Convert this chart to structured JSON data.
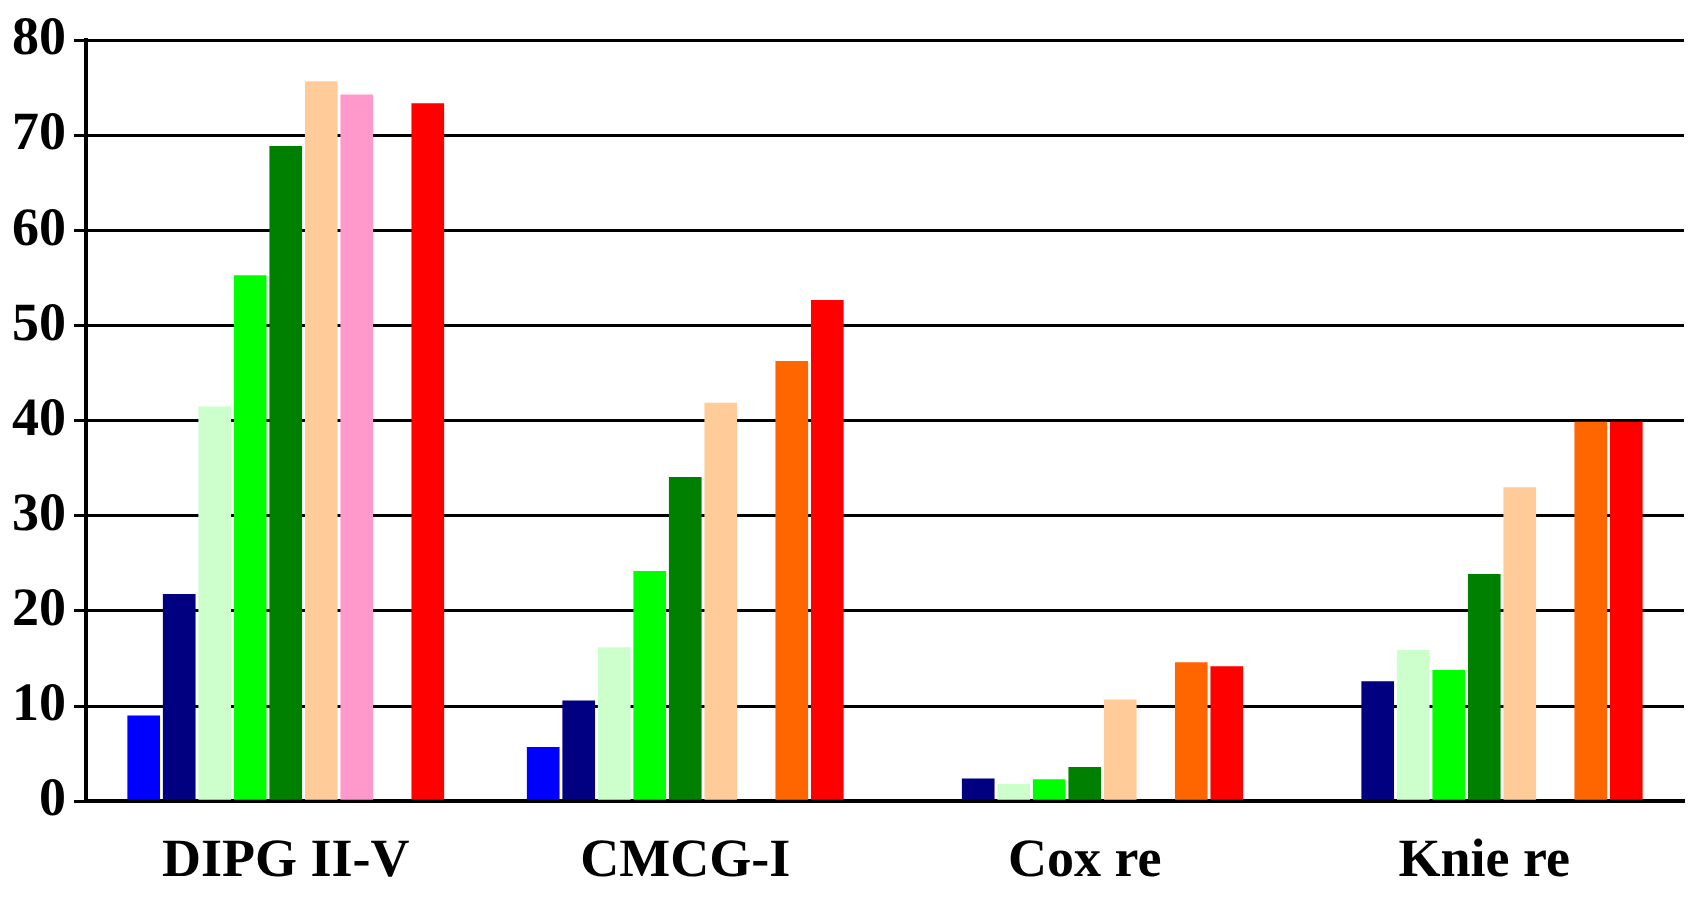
{
  "chart_data": {
    "type": "bar",
    "categories": [
      "DIPG II-V",
      "CMCG-I",
      "Cox re",
      "Knie re"
    ],
    "series": [
      {
        "color": "#0000ff",
        "values": [
          9.0,
          5.7,
          null,
          null
        ]
      },
      {
        "color": "#000080",
        "values": [
          21.8,
          10.6,
          2.4,
          12.6
        ]
      },
      {
        "color": "#ccffcc",
        "values": [
          41.5,
          16.2,
          1.8,
          15.9
        ]
      },
      {
        "color": "#00ff00",
        "values": [
          55.3,
          24.2,
          2.3,
          13.8
        ]
      },
      {
        "color": "#008000",
        "values": [
          68.9,
          34.1,
          3.6,
          23.9
        ]
      },
      {
        "color": "#ffcc99",
        "values": [
          75.7,
          41.9,
          10.7,
          33.0
        ]
      },
      {
        "color": "#ff99cc",
        "values": [
          74.3,
          null,
          null,
          null
        ]
      },
      {
        "color": "#ff6600",
        "values": [
          null,
          46.3,
          14.6,
          39.9
        ]
      },
      {
        "color": "#ff0000",
        "values": [
          73.4,
          52.7,
          14.2,
          39.9
        ]
      }
    ],
    "ylim": [
      0,
      80
    ],
    "yticks": [
      0,
      10,
      20,
      30,
      40,
      50,
      60,
      70,
      80
    ],
    "grid": "y",
    "legend": false
  }
}
